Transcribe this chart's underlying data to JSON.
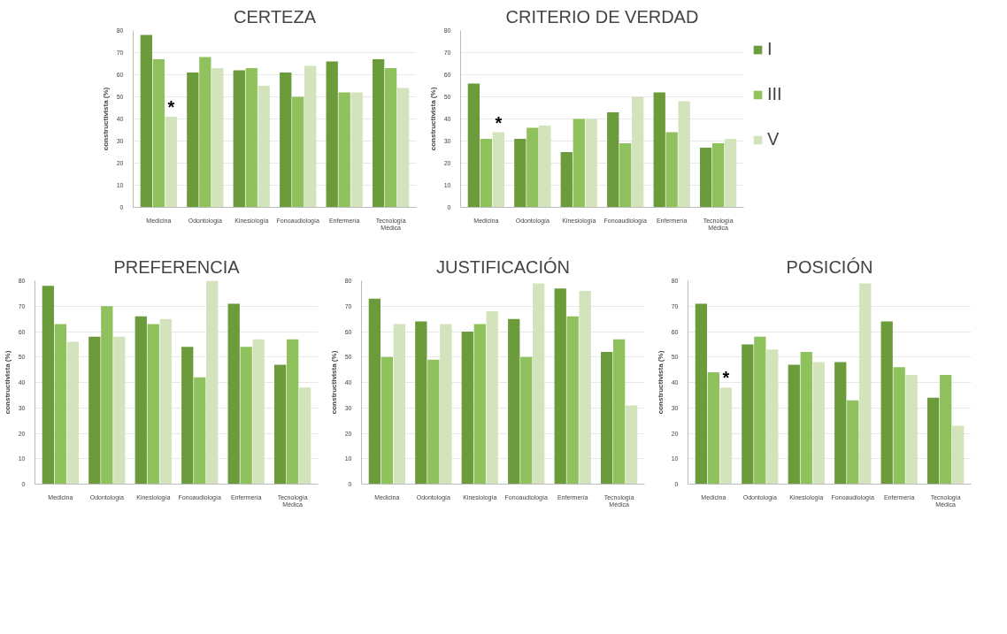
{
  "chart_data": [
    {
      "type": "bar",
      "title": "CERTEZA",
      "ylabel": "constructivista (%)",
      "categories": [
        "Medicina",
        "Odontología",
        "Kinesiología",
        "Fonoaudiología",
        "Enfermería",
        "Tecnología\nMédica"
      ],
      "ylim": [
        0,
        80
      ],
      "yticks": [
        0,
        10,
        20,
        30,
        40,
        50,
        60,
        70,
        80
      ],
      "grid": "y",
      "series": [
        {
          "color": "#6b9b3a",
          "values": [
            78,
            61,
            62,
            61,
            66,
            67
          ]
        },
        {
          "color": "#8fc15c",
          "values": [
            67,
            68,
            63,
            50,
            52,
            63
          ]
        },
        {
          "color": "#d3e3bb",
          "values": [
            41,
            63,
            55,
            64,
            52,
            54
          ]
        }
      ],
      "annotations": [
        "*"
      ]
    },
    {
      "type": "bar",
      "title": "CRITERIO DE VERDAD",
      "ylabel": "constructivista (%)",
      "categories": [
        "Medicina",
        "Odontología",
        "Kinesiología",
        "Fonoaudiología",
        "Enfermería",
        "Tecnología\nMédica"
      ],
      "ylim": [
        0,
        80
      ],
      "yticks": [
        0,
        10,
        20,
        30,
        40,
        50,
        60,
        70,
        80
      ],
      "grid": "y",
      "legend": "right",
      "series": [
        {
          "name": "I",
          "color": "#6b9b3a",
          "values": [
            56,
            31,
            25,
            43,
            52,
            27
          ]
        },
        {
          "name": "III",
          "color": "#8fc15c",
          "values": [
            31,
            36,
            40,
            29,
            34,
            29
          ]
        },
        {
          "name": "V",
          "color": "#d3e3bb",
          "values": [
            34,
            37,
            40,
            50,
            48,
            31
          ]
        }
      ],
      "annotations": [
        "*"
      ]
    },
    {
      "type": "bar",
      "title": "PREFERENCIA",
      "ylabel": "constructivista (%)",
      "categories": [
        "Medicina",
        "Odontología",
        "Kinesiología",
        "Fonoaudiología",
        "Enfermería",
        "Tecnología\nMédica"
      ],
      "ylim": [
        0,
        80
      ],
      "yticks": [
        0,
        10,
        20,
        30,
        40,
        50,
        60,
        70,
        80
      ],
      "grid": "y",
      "series": [
        {
          "color": "#6b9b3a",
          "values": [
            78,
            58,
            66,
            54,
            71,
            47
          ]
        },
        {
          "color": "#8fc15c",
          "values": [
            63,
            70,
            63,
            42,
            54,
            57
          ]
        },
        {
          "color": "#d3e3bb",
          "values": [
            56,
            58,
            65,
            80,
            57,
            38
          ]
        }
      ]
    },
    {
      "type": "bar",
      "title": "JUSTIFICACIÓN",
      "ylabel": "constructivista (%)",
      "categories": [
        "Medicina",
        "Odontología",
        "Kinesiología",
        "Fonoaudiología",
        "Enfermería",
        "Tecnología\nMédica"
      ],
      "ylim": [
        0,
        80
      ],
      "yticks": [
        0,
        10,
        20,
        30,
        40,
        50,
        60,
        70,
        80
      ],
      "grid": "y",
      "series": [
        {
          "color": "#6b9b3a",
          "values": [
            73,
            64,
            60,
            65,
            77,
            52
          ]
        },
        {
          "color": "#8fc15c",
          "values": [
            50,
            49,
            63,
            50,
            66,
            57
          ]
        },
        {
          "color": "#d3e3bb",
          "values": [
            63,
            63,
            68,
            79,
            76,
            31
          ]
        }
      ]
    },
    {
      "type": "bar",
      "title": "POSICIÓN",
      "ylabel": "constructivista (%)",
      "categories": [
        "Medicina",
        "Odontología",
        "Kinesiología",
        "Fonoaudiología",
        "Enfermería",
        "Tecnología\nMédica"
      ],
      "ylim": [
        0,
        80
      ],
      "yticks": [
        0,
        10,
        20,
        30,
        40,
        50,
        60,
        70,
        80
      ],
      "grid": "y",
      "series": [
        {
          "color": "#6b9b3a",
          "values": [
            71,
            55,
            47,
            48,
            64,
            34
          ]
        },
        {
          "color": "#8fc15c",
          "values": [
            44,
            58,
            52,
            33,
            46,
            43
          ]
        },
        {
          "color": "#d3e3bb",
          "values": [
            38,
            53,
            48,
            79,
            43,
            23
          ]
        }
      ],
      "annotations": [
        "*"
      ]
    }
  ]
}
